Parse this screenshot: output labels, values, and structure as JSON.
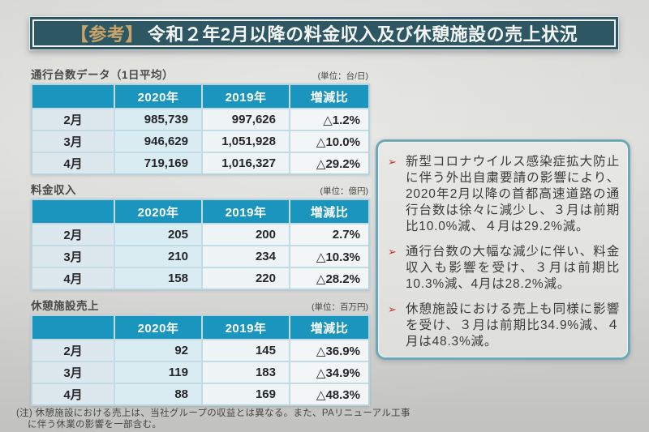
{
  "slide": {
    "title": {
      "prefix": "【参考】",
      "main": "令和２年2月以降の料金収入及び休憩施設の売上状況"
    },
    "tables": [
      {
        "title": "通行台数データ（1日平均）",
        "unit": "(単位：台/日)",
        "columns": [
          "",
          "2020年",
          "2019年",
          "増減比"
        ],
        "rows": [
          {
            "label": "2月",
            "v2020": "985,739",
            "v2019": "997,626",
            "change": "△1.2%"
          },
          {
            "label": "3月",
            "v2020": "946,629",
            "v2019": "1,051,928",
            "change": "△10.0%"
          },
          {
            "label": "4月",
            "v2020": "719,169",
            "v2019": "1,016,327",
            "change": "△29.2%"
          }
        ]
      },
      {
        "title": "料金収入",
        "unit": "(単位：億円)",
        "columns": [
          "",
          "2020年",
          "2019年",
          "増減比"
        ],
        "rows": [
          {
            "label": "2月",
            "v2020": "205",
            "v2019": "200",
            "change": "2.7%"
          },
          {
            "label": "3月",
            "v2020": "210",
            "v2019": "234",
            "change": "△10.3%"
          },
          {
            "label": "4月",
            "v2020": "158",
            "v2019": "220",
            "change": "△28.2%"
          }
        ]
      },
      {
        "title": "休憩施設売上",
        "unit": "(単位：百万円)",
        "columns": [
          "",
          "2020年",
          "2019年",
          "増減比"
        ],
        "rows": [
          {
            "label": "2月",
            "v2020": "92",
            "v2019": "145",
            "change": "△36.9%"
          },
          {
            "label": "3月",
            "v2020": "119",
            "v2019": "183",
            "change": "△34.9%"
          },
          {
            "label": "4月",
            "v2020": "88",
            "v2019": "169",
            "change": "△48.3%"
          }
        ]
      }
    ],
    "notes": {
      "marker": "➢",
      "bullets": [
        "新型コロナウイルス感染症拡大防止に伴う外出自粛要請の影響により、2020年2月以降の首都高速道路の通行台数は徐々に減少し、３月は前期比10.0%減、４月は29.2%減。",
        "通行台数の大幅な減少に伴い、料金収入も影響を受け、３月は前期比10.3%減、4月は28.2%減。",
        "休憩施設における売上も同様に影響を受け、３月は前期比34.9%減、４月は48.3%減。"
      ]
    },
    "footnote": {
      "line1": "(注) 休憩施設における売上は、当社グループの収益とは異なる。また、PAリニューアル工事",
      "line2": "に伴う休業の影響を一部含む。"
    },
    "colors": {
      "table_header_teal": "#1a96be",
      "title_bar_bg": "#2d5763",
      "title_prefix_gold": "#c9a469",
      "note_box_border": "#6ba9ba",
      "bullet_marker_red": "#cf3125"
    }
  }
}
